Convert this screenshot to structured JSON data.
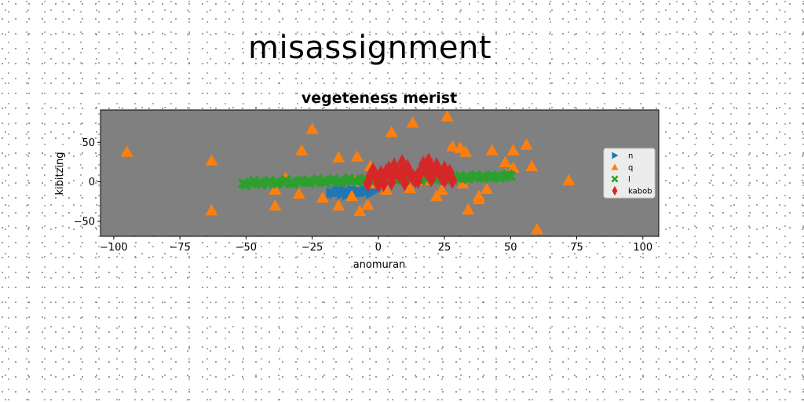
{
  "figure": {
    "suptitle": "misassignment"
  },
  "chart_data": {
    "type": "scatter",
    "title": "vegeteness merist",
    "xlabel": "anomuran",
    "ylabel": "kibitzing",
    "xlim": [
      -105,
      106
    ],
    "ylim": [
      -69,
      91
    ],
    "xticks": [
      -100,
      -75,
      -50,
      -25,
      0,
      25,
      50,
      75,
      100
    ],
    "yticks": [
      -50,
      0,
      50
    ],
    "xtick_labels": [
      "−100",
      "−75",
      "−50",
      "−25",
      "0",
      "25",
      "50",
      "75",
      "100"
    ],
    "ytick_labels": [
      "−50",
      "0",
      "50"
    ],
    "plot_background": "#808080",
    "grid": false,
    "legend_position": "right",
    "series": [
      {
        "name": "n",
        "marker": "triangle-right",
        "color": "#1f77b4",
        "points": [
          [
            -18,
            -14
          ],
          [
            -17,
            -15
          ],
          [
            -16,
            -12
          ],
          [
            -15,
            -13
          ],
          [
            -14,
            -16
          ],
          [
            -13,
            -11
          ],
          [
            -12,
            -14
          ],
          [
            -11,
            -13
          ],
          [
            -10,
            -15
          ],
          [
            -9,
            -12
          ],
          [
            -8,
            -11
          ],
          [
            -7,
            -14
          ],
          [
            -6,
            -13
          ],
          [
            -5,
            -10
          ],
          [
            -4,
            -12
          ],
          [
            -3,
            -15
          ],
          [
            -2,
            -9
          ],
          [
            -1,
            -11
          ],
          [
            -15,
            -10
          ],
          [
            -12,
            -17
          ],
          [
            -8,
            -16
          ],
          [
            -5,
            -13
          ],
          [
            -10,
            -9
          ]
        ]
      },
      {
        "name": "q",
        "marker": "triangle-up",
        "color": "#ff7f0e",
        "points": [
          [
            -95,
            38
          ],
          [
            -63,
            27
          ],
          [
            -63,
            -36
          ],
          [
            -39,
            -30
          ],
          [
            -39,
            -10
          ],
          [
            -35,
            5
          ],
          [
            -30,
            -15
          ],
          [
            -29,
            40
          ],
          [
            -25,
            67
          ],
          [
            -21,
            -20
          ],
          [
            -15,
            -30
          ],
          [
            -15,
            31
          ],
          [
            -10,
            -18
          ],
          [
            -9,
            1
          ],
          [
            -8,
            32
          ],
          [
            -7,
            -37
          ],
          [
            -4,
            -29
          ],
          [
            -3,
            20
          ],
          [
            -1,
            -2
          ],
          [
            3,
            -10
          ],
          [
            5,
            63
          ],
          [
            8,
            15
          ],
          [
            12,
            -8
          ],
          [
            13,
            75
          ],
          [
            17,
            2
          ],
          [
            22,
            -18
          ],
          [
            24,
            -10
          ],
          [
            26,
            83
          ],
          [
            28,
            45
          ],
          [
            32,
            -2
          ],
          [
            31,
            43
          ],
          [
            33,
            38
          ],
          [
            34,
            -35
          ],
          [
            38,
            -22
          ],
          [
            38,
            -18
          ],
          [
            41,
            -9
          ],
          [
            43,
            40
          ],
          [
            48,
            25
          ],
          [
            48,
            10
          ],
          [
            51,
            40
          ],
          [
            51,
            18
          ],
          [
            56,
            47
          ],
          [
            58,
            20
          ],
          [
            60,
            -60
          ],
          [
            72,
            2
          ]
        ]
      },
      {
        "name": "l",
        "marker": "x-filled",
        "color": "#2ca02c",
        "points": [
          [
            -51,
            -2
          ],
          [
            -48,
            -2
          ],
          [
            -45,
            -1
          ],
          [
            -42,
            -2
          ],
          [
            -39,
            -1
          ],
          [
            -36,
            -1
          ],
          [
            -33,
            -1
          ],
          [
            -30,
            0
          ],
          [
            -27,
            0
          ],
          [
            -24,
            0
          ],
          [
            -21,
            1
          ],
          [
            -18,
            1
          ],
          [
            -15,
            1
          ],
          [
            -12,
            1
          ],
          [
            -9,
            2
          ],
          [
            -6,
            2
          ],
          [
            -3,
            2
          ],
          [
            0,
            2
          ],
          [
            3,
            3
          ],
          [
            6,
            3
          ],
          [
            9,
            3
          ],
          [
            12,
            4
          ],
          [
            15,
            4
          ],
          [
            18,
            4
          ],
          [
            21,
            4
          ],
          [
            24,
            5
          ],
          [
            27,
            5
          ],
          [
            30,
            5
          ],
          [
            33,
            6
          ],
          [
            36,
            6
          ],
          [
            39,
            6
          ],
          [
            42,
            6
          ],
          [
            45,
            7
          ],
          [
            48,
            7
          ],
          [
            50,
            7
          ],
          [
            -50,
            -4
          ],
          [
            -44,
            -3
          ],
          [
            -38,
            -2
          ],
          [
            -32,
            -2
          ],
          [
            -26,
            -1
          ],
          [
            -20,
            -1
          ],
          [
            -14,
            0
          ],
          [
            -8,
            0
          ],
          [
            -2,
            1
          ],
          [
            4,
            1
          ],
          [
            10,
            2
          ],
          [
            16,
            2
          ],
          [
            22,
            3
          ],
          [
            28,
            3
          ],
          [
            34,
            4
          ],
          [
            40,
            5
          ],
          [
            46,
            5
          ],
          [
            -47,
            1
          ],
          [
            -41,
            1
          ],
          [
            -35,
            2
          ],
          [
            -29,
            2
          ],
          [
            -23,
            3
          ],
          [
            -17,
            3
          ],
          [
            -11,
            4
          ],
          [
            -5,
            4
          ],
          [
            1,
            5
          ],
          [
            7,
            5
          ],
          [
            13,
            6
          ],
          [
            19,
            6
          ],
          [
            25,
            7
          ],
          [
            31,
            7
          ],
          [
            37,
            8
          ],
          [
            43,
            8
          ],
          [
            49,
            9
          ]
        ]
      },
      {
        "name": "kabob",
        "marker": "thin-diamond",
        "color": "#d62728",
        "points": [
          [
            -3,
            8
          ],
          [
            -2,
            14
          ],
          [
            -1,
            5
          ],
          [
            0,
            2
          ],
          [
            1,
            10
          ],
          [
            2,
            -2
          ],
          [
            3,
            12
          ],
          [
            4,
            16
          ],
          [
            5,
            6
          ],
          [
            6,
            20
          ],
          [
            7,
            13
          ],
          [
            8,
            9
          ],
          [
            9,
            24
          ],
          [
            10,
            15
          ],
          [
            11,
            18
          ],
          [
            12,
            10
          ],
          [
            13,
            6
          ],
          [
            14,
            3
          ],
          [
            15,
            8
          ],
          [
            16,
            12
          ],
          [
            17,
            22
          ],
          [
            18,
            14
          ],
          [
            19,
            26
          ],
          [
            20,
            18
          ],
          [
            21,
            10
          ],
          [
            22,
            20
          ],
          [
            23,
            14
          ],
          [
            24,
            6
          ],
          [
            25,
            16
          ],
          [
            26,
            8
          ],
          [
            27,
            12
          ],
          [
            28,
            2
          ],
          [
            -4,
            -2
          ],
          [
            0,
            -3
          ],
          [
            5,
            0
          ],
          [
            10,
            -1
          ],
          [
            15,
            2
          ],
          [
            20,
            4
          ],
          [
            25,
            3
          ]
        ]
      }
    ]
  }
}
